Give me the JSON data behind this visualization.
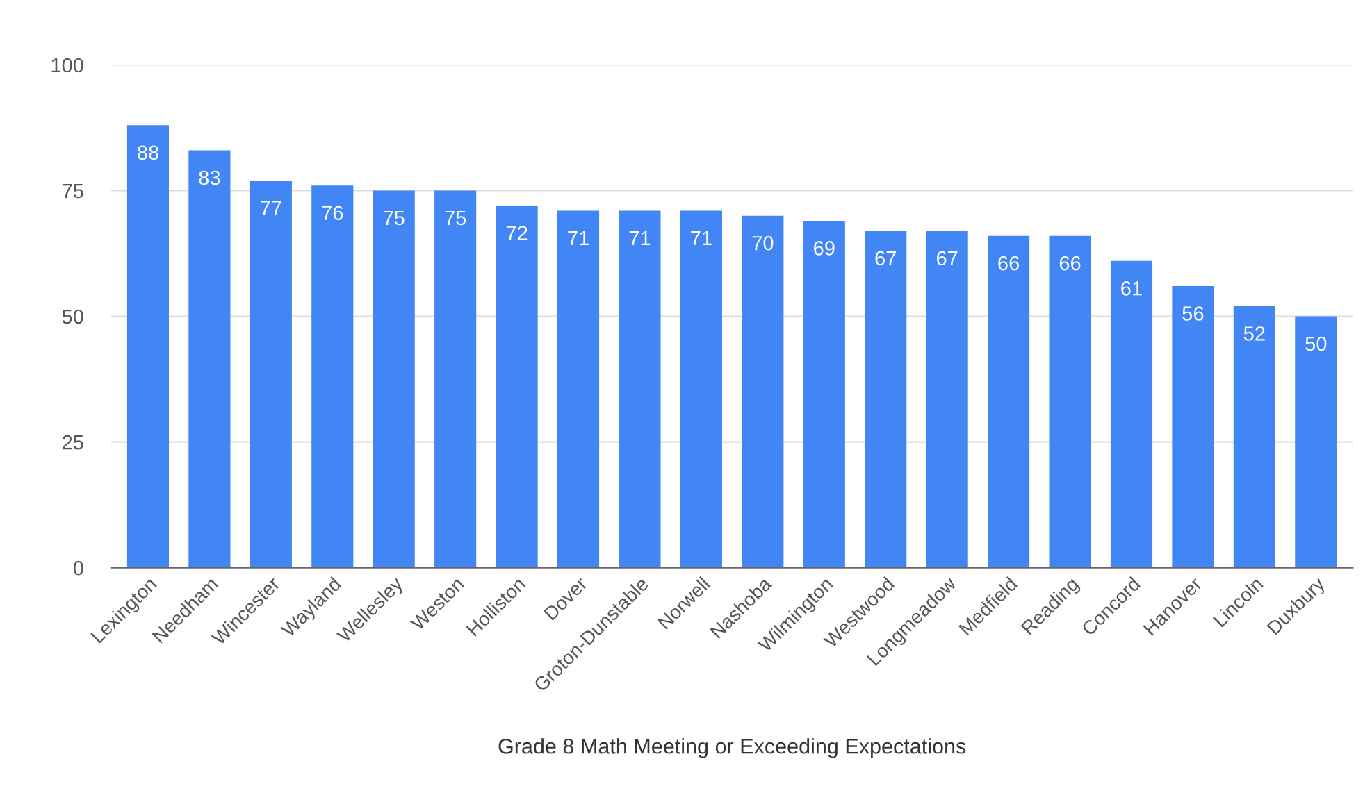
{
  "chart_data": {
    "type": "bar",
    "xlabel": "Grade 8 Math Meeting or Exceeding Expectations",
    "categories": [
      "Lexington",
      "Needham",
      "Wincester",
      "Wayland",
      "Wellesley",
      "Weston",
      "Holliston",
      "Dover",
      "Groton-Dunstable",
      "Norwell",
      "Nashoba",
      "Wilmington",
      "Westwood",
      "Longmeadow",
      "Medfield",
      "Reading",
      "Concord",
      "Hanover",
      "Lincoln",
      "Duxbury"
    ],
    "values": [
      88,
      83,
      77,
      76,
      75,
      75,
      72,
      71,
      71,
      71,
      70,
      69,
      67,
      67,
      66,
      66,
      61,
      56,
      52,
      50
    ],
    "color": "#4285f4",
    "ylim": [
      0,
      100
    ],
    "yticks": [
      0,
      25,
      50,
      75,
      100
    ],
    "grid": "y",
    "data_labels": true
  }
}
